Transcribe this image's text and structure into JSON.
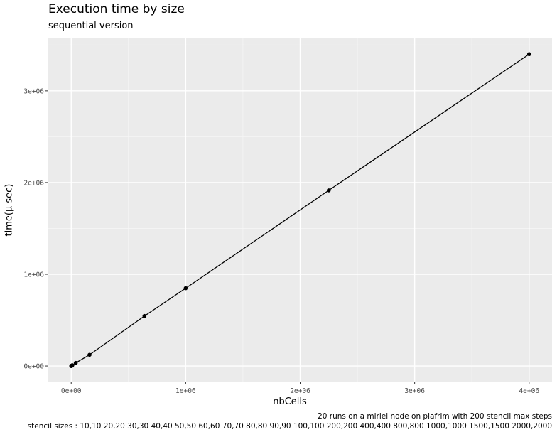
{
  "chart_data": {
    "type": "line",
    "title": "Execution time by size",
    "subtitle": "sequential version",
    "xlabel": "nbCells",
    "ylabel": "time(µ sec)",
    "x": [
      100,
      400,
      900,
      1600,
      2500,
      3600,
      4900,
      6400,
      8100,
      10000,
      40000,
      160000,
      640000,
      1000000,
      2250000,
      4000000
    ],
    "y": [
      80,
      350,
      780,
      1400,
      2150,
      3100,
      4200,
      5500,
      6900,
      8500,
      34000,
      122000,
      545000,
      848000,
      1915000,
      3400000
    ],
    "xlim": [
      -200000,
      4200000
    ],
    "ylim": [
      -170000,
      3580000
    ],
    "x_ticks": [
      0,
      1000000,
      2000000,
      3000000,
      4000000
    ],
    "x_tick_labels": [
      "0e+00",
      "1e+06",
      "2e+06",
      "3e+06",
      "4e+06"
    ],
    "y_ticks": [
      0,
      1000000,
      2000000,
      3000000
    ],
    "y_tick_labels": [
      "0e+00",
      "1e+06",
      "2e+06",
      "3e+06"
    ],
    "grid": true,
    "line_color": "#000000",
    "panel_color": "#ebebeb",
    "grid_color": "#ffffff",
    "captions": [
      "20 runs on a miriel node on plafrim with 200 stencil max steps",
      "stencil sizes : 10,10 20,20 30,30 40,40 50,50 60,60 70,70 80,80 90,90 100,100 200,200 400,400 800,800 1000,1000 1500,1500 2000,2000"
    ]
  }
}
